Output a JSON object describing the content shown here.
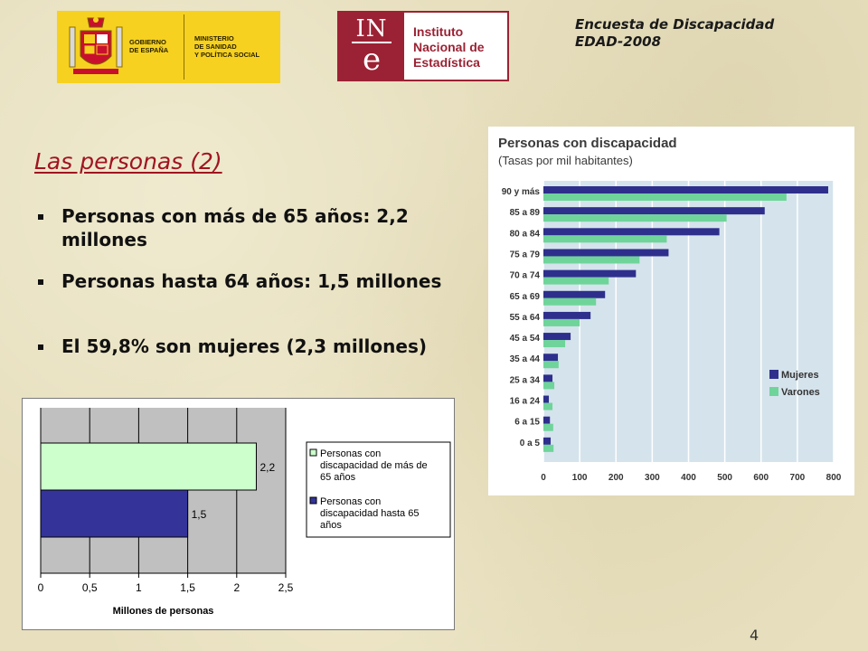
{
  "header": {
    "title": "Encuesta de Discapacidad\nEDAD-2008",
    "logo_gov_left": "GOBIERNO\nDE ESPAÑA",
    "logo_gov_right": "MINISTERIO\nDE SANIDAD\nY POLÍTICA SOCIAL",
    "logo_ine_mark": "INE",
    "logo_ine_text": "Instituto\nNacional de\nEstadística"
  },
  "slide": {
    "title": "Las personas (2)",
    "bullets": [
      "Personas con más de 65 años: 2,2 millones",
      "Personas hasta 64 años: 1,5 millones",
      "El 59,8% son mujeres (2,3 millones)"
    ],
    "page_number": "4"
  },
  "colors": {
    "title_red": "#a01420",
    "ine_red": "#9b2234",
    "gov_yellow": "#f6d11f",
    "bar_navy": "#333399",
    "bar_lightgreen": "#ccffcc",
    "mujeres": "#2e2f8c",
    "varones": "#6fd49a",
    "plot_blue_bg": "#d5e3ec",
    "plot_gray_bg": "#c0c0c0"
  },
  "chart_data": [
    {
      "type": "bar",
      "orientation": "horizontal",
      "categories": [
        "Personas con discapacidad de más de 65 años",
        "Personas con discapacidad hasta 65 años"
      ],
      "values": [
        2.2,
        1.5
      ],
      "data_labels": [
        "2,2",
        "1,5"
      ],
      "title": "",
      "xlabel": "Millones de personas",
      "ylabel": "",
      "xlim": [
        0,
        2.5
      ],
      "x_ticks": [
        "0",
        "0,5",
        "1",
        "1,5",
        "2",
        "2,5"
      ],
      "legend": [
        "Personas con discapacidad de más de 65 años",
        "Personas con discapacidad hasta 65 años"
      ],
      "legend_position": "right",
      "grid": true
    },
    {
      "type": "bar",
      "orientation": "horizontal",
      "title": "Personas con discapacidad",
      "subtitle": "(Tasas por mil habitantes)",
      "categories": [
        "90 y más",
        "85 a 89",
        "80 a 84",
        "75 a 79",
        "70 a 74",
        "65 a 69",
        "55 a 64",
        "45 a 54",
        "35 a 44",
        "25 a 34",
        "16 a 24",
        "6 a 15",
        "0 a 5"
      ],
      "series": [
        {
          "name": "Mujeres",
          "values": [
            785,
            610,
            485,
            345,
            255,
            170,
            130,
            75,
            40,
            25,
            15,
            18,
            20
          ]
        },
        {
          "name": "Varones",
          "values": [
            670,
            505,
            340,
            265,
            180,
            145,
            100,
            60,
            42,
            30,
            25,
            27,
            28
          ]
        }
      ],
      "xlim": [
        0,
        800
      ],
      "x_ticks": [
        "0",
        "100",
        "200",
        "300",
        "400",
        "500",
        "600",
        "700",
        "800"
      ],
      "legend_position": "bottom-right",
      "grid": true
    }
  ]
}
